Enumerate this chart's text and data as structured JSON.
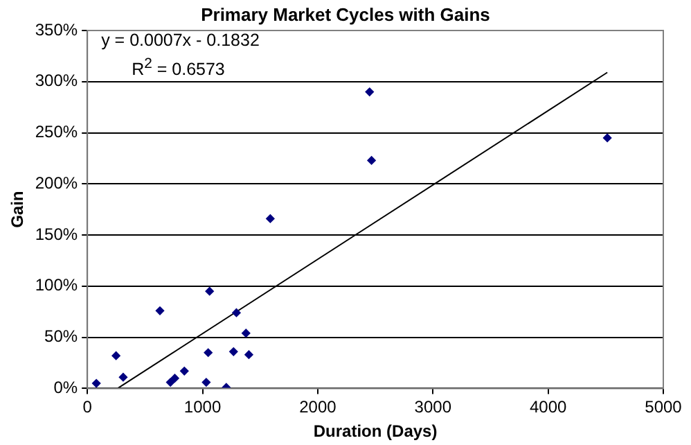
{
  "chart_data": {
    "type": "scatter",
    "title": "Primary Market Cycles with Gains",
    "xlabel": "Duration (Days)",
    "ylabel": "Gain",
    "xlim": [
      0,
      5000
    ],
    "xticks": [
      0,
      1000,
      2000,
      3000,
      4000,
      5000
    ],
    "ylim": [
      0,
      350
    ],
    "yticks": [
      {
        "value": 0,
        "label": "0%"
      },
      {
        "value": 50,
        "label": "50%"
      },
      {
        "value": 100,
        "label": "100%"
      },
      {
        "value": 150,
        "label": "150%"
      },
      {
        "value": 200,
        "label": "200%"
      },
      {
        "value": 250,
        "label": "250%"
      },
      {
        "value": 300,
        "label": "300%"
      },
      {
        "value": 350,
        "label": "350%"
      }
    ],
    "grid": "y",
    "legend": false,
    "marker": "diamond",
    "annotations": [
      "y = 0.0007x - 0.1832",
      "R$^{2}$ = 0.6573"
    ],
    "series": [
      {
        "color": "#000080",
        "x": [
          78,
          249,
          311,
          630,
          721,
          759,
          842,
          1032,
          1049,
          1061,
          1206,
          1269,
          1294,
          1377,
          1402,
          1588,
          2450,
          2467,
          4514
        ],
        "values": [
          5,
          32,
          11,
          76,
          6,
          10,
          17,
          6,
          35,
          95,
          1,
          36,
          74,
          54,
          33,
          166,
          290,
          223,
          245
        ]
      },
      {
        "type": "line",
        "color": "#000000",
        "marker": "none",
        "x": [
          262,
          4514
        ],
        "values": [
          0,
          309
        ]
      }
    ]
  }
}
